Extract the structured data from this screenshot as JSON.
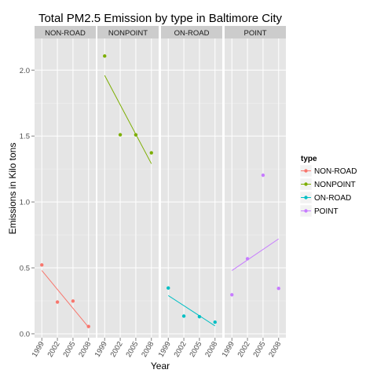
{
  "chart_data": {
    "type": "scatter",
    "title": "Total PM2.5 Emission by type in Baltimore City",
    "xlabel": "Year",
    "ylabel": "Emissions in Kilo tons",
    "x_ticks": [
      "1999",
      "2002",
      "2005",
      "2008"
    ],
    "y_ticks": [
      "0.0",
      "0.5",
      "1.0",
      "1.5",
      "2.0"
    ],
    "ylim": [
      -0.03,
      2.24
    ],
    "grid": true,
    "legend_position": "right",
    "legend_title": "type",
    "facets": [
      {
        "name": "NON-ROAD",
        "color": "#F8766D",
        "points": [
          {
            "x": 1999,
            "y": 0.522
          },
          {
            "x": 2002,
            "y": 0.241
          },
          {
            "x": 2005,
            "y": 0.248
          },
          {
            "x": 2008,
            "y": 0.055
          }
        ],
        "trend": {
          "y_start": 0.48,
          "y_end": 0.05
        }
      },
      {
        "name": "NONPOINT",
        "color": "#7CAE00",
        "points": [
          {
            "x": 1999,
            "y": 2.107
          },
          {
            "x": 2002,
            "y": 1.51
          },
          {
            "x": 2005,
            "y": 1.509
          },
          {
            "x": 2008,
            "y": 1.373
          }
        ],
        "trend": {
          "y_start": 1.96,
          "y_end": 1.29
        }
      },
      {
        "name": "ON-ROAD",
        "color": "#00BFC4",
        "points": [
          {
            "x": 1999,
            "y": 0.347
          },
          {
            "x": 2002,
            "y": 0.134
          },
          {
            "x": 2005,
            "y": 0.13
          },
          {
            "x": 2008,
            "y": 0.088
          }
        ],
        "trend": {
          "y_start": 0.29,
          "y_end": 0.06
        }
      },
      {
        "name": "POINT",
        "color": "#C77CFF",
        "points": [
          {
            "x": 1999,
            "y": 0.296
          },
          {
            "x": 2002,
            "y": 0.569
          },
          {
            "x": 2005,
            "y": 1.203
          },
          {
            "x": 2008,
            "y": 0.344
          }
        ],
        "trend": {
          "y_start": 0.48,
          "y_end": 0.72
        }
      }
    ]
  }
}
